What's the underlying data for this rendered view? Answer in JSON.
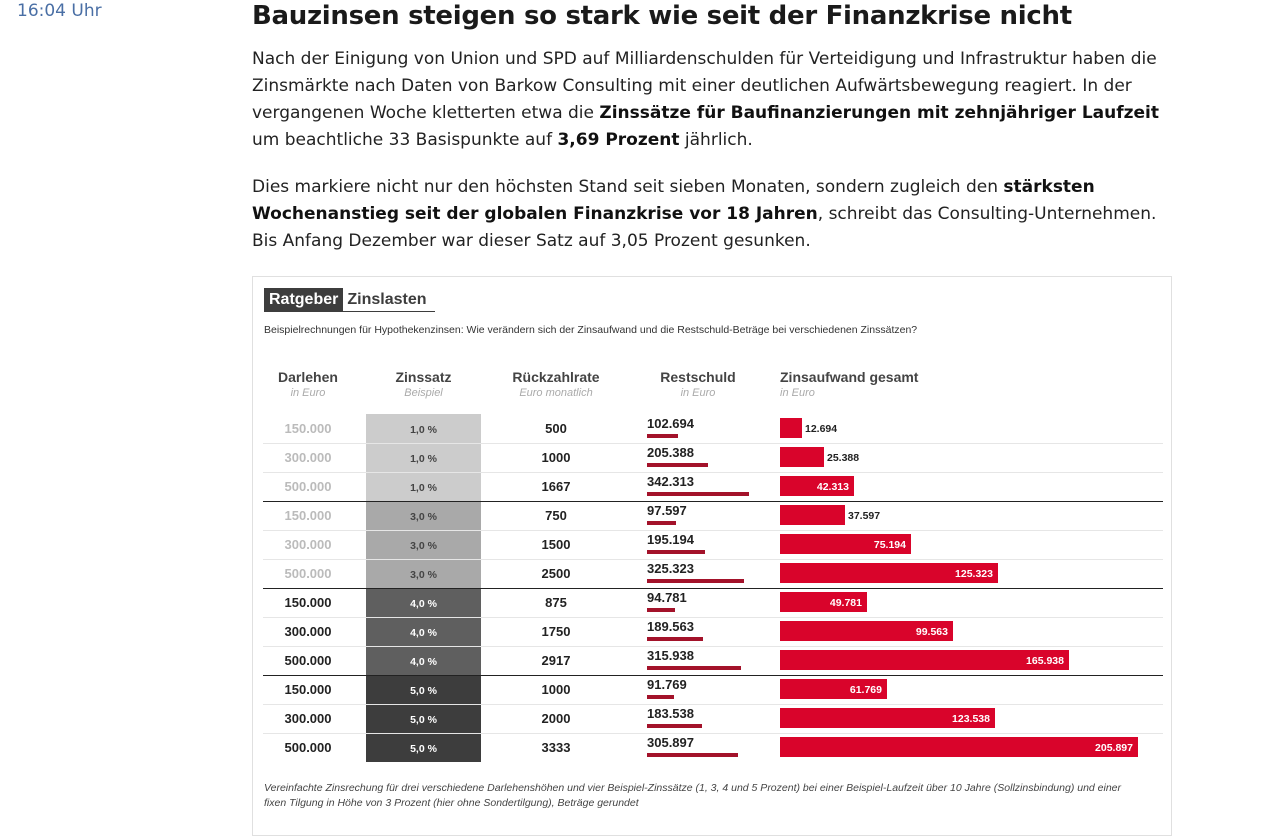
{
  "timestamp": "16:04 Uhr",
  "article": {
    "headline": "Bauzinsen steigen so stark wie seit der Finanzkrise nicht",
    "p1": {
      "t1": "Nach der Einigung von Union und SPD auf Milliardenschulden für Verteidigung und Infrastruktur haben die Zinsmärkte nach Daten von Barkow Consulting mit einer deutlichen Aufwärtsbewegung reagiert. In der vergangenen Woche kletterten etwa die ",
      "b1": "Zinssätze für Baufinanzierungen mit zehnjähriger Laufzeit",
      "t2": " um beachtliche 33 Basispunkte auf ",
      "b2": "3,69 Prozent",
      "t3": " jährlich."
    },
    "p2": {
      "t1": "Dies markiere nicht nur den höchsten Stand seit sieben Monaten, sondern zugleich den ",
      "b1": "stärksten Wochenanstieg seit der globalen Finanzkrise vor 18 Jahren",
      "t2": ", schreibt das Consulting-Unternehmen. Bis Anfang Dezember war dieser Satz auf 3,05 Prozent gesunken."
    }
  },
  "chart": {
    "title_tag": "Ratgeber",
    "title_rest": "Zinslasten",
    "subtitle": "Beispielrechnungen für Hypothekenzinsen: Wie verändern sich der Zinsaufwand und die Restschuld-Beträge bei verschiedenen Zinssätzen?",
    "columns": {
      "darlehen": {
        "label": "Darlehen",
        "unit": "in Euro"
      },
      "zinssatz": {
        "label": "Zinssatz",
        "unit": "Beispiel"
      },
      "rate": {
        "label": "Rückzahlrate",
        "unit": "Euro monatlich"
      },
      "restschuld": {
        "label": "Restschuld",
        "unit": "in Euro"
      },
      "zinsaufwand": {
        "label": "Zinsaufwand gesamt",
        "unit": "in Euro"
      }
    },
    "footnote": "Vereinfachte Zinsrechung für drei verschiedene Darlehenshöhen und vier Beispiel-Zinssätze (1, 3, 4 und 5 Prozent) bei einer Beispiel-Laufzeit über 10 Jahre (Sollzinsbindung) und einer fixen Tilgung in Höhe von 3 Prozent (hier ohne Sondertilgung), Beträge gerundet",
    "colors": {
      "zins_1": "#cccccc",
      "zins_3": "#a9a9a9",
      "zins_4": "#5f5f5f",
      "zins_5": "#3d3d3d",
      "restschuld_bar": "#a3122a",
      "zinsaufwand_bar": "#d9042b"
    }
  },
  "chart_data": {
    "type": "table",
    "rows": [
      {
        "darlehen": "150.000",
        "zinssatz": "1,0 %",
        "rate": "500",
        "restschuld": "102.694",
        "restschuld_value": 102694,
        "zinsaufwand": "12.694",
        "zinsaufwand_value": 12694
      },
      {
        "darlehen": "300.000",
        "zinssatz": "1,0 %",
        "rate": "1000",
        "restschuld": "205.388",
        "restschuld_value": 205388,
        "zinsaufwand": "25.388",
        "zinsaufwand_value": 25388
      },
      {
        "darlehen": "500.000",
        "zinssatz": "1,0 %",
        "rate": "1667",
        "restschuld": "342.313",
        "restschuld_value": 342313,
        "zinsaufwand": "42.313",
        "zinsaufwand_value": 42313
      },
      {
        "darlehen": "150.000",
        "zinssatz": "3,0 %",
        "rate": "750",
        "restschuld": "97.597",
        "restschuld_value": 97597,
        "zinsaufwand": "37.597",
        "zinsaufwand_value": 37597
      },
      {
        "darlehen": "300.000",
        "zinssatz": "3,0 %",
        "rate": "1500",
        "restschuld": "195.194",
        "restschuld_value": 195194,
        "zinsaufwand": "75.194",
        "zinsaufwand_value": 75194
      },
      {
        "darlehen": "500.000",
        "zinssatz": "3,0 %",
        "rate": "2500",
        "restschuld": "325.323",
        "restschuld_value": 325323,
        "zinsaufwand": "125.323",
        "zinsaufwand_value": 125323
      },
      {
        "darlehen": "150.000",
        "zinssatz": "4,0 %",
        "rate": "875",
        "restschuld": "94.781",
        "restschuld_value": 94781,
        "zinsaufwand": "49.781",
        "zinsaufwand_value": 49781
      },
      {
        "darlehen": "300.000",
        "zinssatz": "4,0 %",
        "rate": "1750",
        "restschuld": "189.563",
        "restschuld_value": 189563,
        "zinsaufwand": "99.563",
        "zinsaufwand_value": 99563
      },
      {
        "darlehen": "500.000",
        "zinssatz": "4,0 %",
        "rate": "2917",
        "restschuld": "315.938",
        "restschuld_value": 315938,
        "zinsaufwand": "165.938",
        "zinsaufwand_value": 165938
      },
      {
        "darlehen": "150.000",
        "zinssatz": "5,0 %",
        "rate": "1000",
        "restschuld": "91.769",
        "restschuld_value": 91769,
        "zinsaufwand": "61.769",
        "zinsaufwand_value": 61769
      },
      {
        "darlehen": "300.000",
        "zinssatz": "5,0 %",
        "rate": "2000",
        "restschuld": "183.538",
        "restschuld_value": 183538,
        "zinsaufwand": "123.538",
        "zinsaufwand_value": 123538
      },
      {
        "darlehen": "500.000",
        "zinssatz": "5,0 %",
        "rate": "3333",
        "restschuld": "305.897",
        "restschuld_value": 305897,
        "zinsaufwand": "205.897",
        "zinsaufwand_value": 205897
      }
    ]
  }
}
